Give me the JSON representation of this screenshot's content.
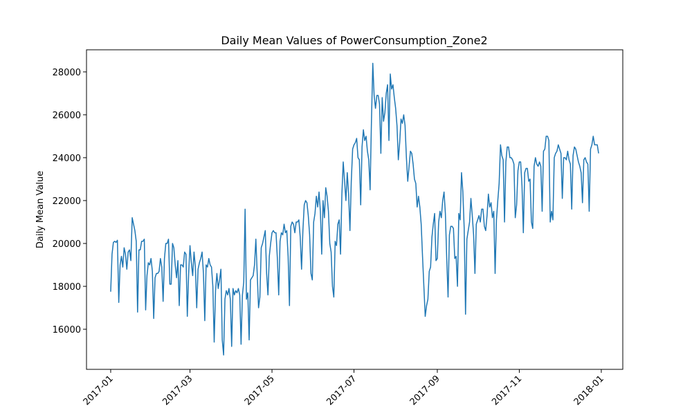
{
  "chart_data": {
    "type": "line",
    "title": "Daily Mean Values of PowerConsumption_Zone2",
    "ylabel": "Daily Mean Value",
    "color": "#1f77b4",
    "xlim": [
      -18,
      381
    ],
    "ylim": [
      14130,
      29030
    ],
    "xticks": [
      {
        "value": 0,
        "label": "2017-01"
      },
      {
        "value": 59,
        "label": "2017-03"
      },
      {
        "value": 120,
        "label": "2017-05"
      },
      {
        "value": 181,
        "label": "2017-07"
      },
      {
        "value": 243,
        "label": "2017-09"
      },
      {
        "value": 304,
        "label": "2017-11"
      },
      {
        "value": 365,
        "label": "2018-01"
      }
    ],
    "yticks": [
      16000,
      18000,
      20000,
      22000,
      24000,
      26000,
      28000
    ],
    "x": [
      0,
      1,
      2,
      3,
      4,
      5,
      6,
      7,
      8,
      9,
      10,
      11,
      12,
      13,
      14,
      15,
      16,
      17,
      18,
      19,
      20,
      21,
      22,
      23,
      24,
      25,
      26,
      27,
      28,
      29,
      30,
      31,
      32,
      33,
      34,
      35,
      36,
      37,
      38,
      39,
      40,
      41,
      42,
      43,
      44,
      45,
      46,
      47,
      48,
      49,
      50,
      51,
      52,
      53,
      54,
      55,
      56,
      57,
      58,
      59,
      60,
      61,
      62,
      63,
      64,
      65,
      66,
      67,
      68,
      69,
      70,
      71,
      72,
      73,
      74,
      75,
      76,
      77,
      78,
      79,
      80,
      81,
      82,
      83,
      84,
      85,
      86,
      87,
      88,
      89,
      90,
      91,
      92,
      93,
      94,
      95,
      96,
      97,
      98,
      99,
      100,
      101,
      102,
      103,
      104,
      105,
      106,
      107,
      108,
      109,
      110,
      111,
      112,
      113,
      114,
      115,
      116,
      117,
      118,
      119,
      120,
      121,
      122,
      123,
      124,
      125,
      126,
      127,
      128,
      129,
      130,
      131,
      132,
      133,
      134,
      135,
      136,
      137,
      138,
      139,
      140,
      141,
      142,
      143,
      144,
      145,
      146,
      147,
      148,
      149,
      150,
      151,
      152,
      153,
      154,
      155,
      156,
      157,
      158,
      159,
      160,
      161,
      162,
      163,
      164,
      165,
      166,
      167,
      168,
      169,
      170,
      171,
      172,
      173,
      174,
      175,
      176,
      177,
      178,
      179,
      180,
      181,
      182,
      183,
      184,
      185,
      186,
      187,
      188,
      189,
      190,
      191,
      192,
      193,
      194,
      195,
      196,
      197,
      198,
      199,
      200,
      201,
      202,
      203,
      204,
      205,
      206,
      207,
      208,
      209,
      210,
      211,
      212,
      213,
      214,
      215,
      216,
      217,
      218,
      219,
      220,
      221,
      222,
      223,
      224,
      225,
      226,
      227,
      228,
      229,
      230,
      231,
      232,
      233,
      234,
      235,
      236,
      237,
      238,
      239,
      240,
      241,
      242,
      243,
      244,
      245,
      246,
      247,
      248,
      249,
      250,
      251,
      252,
      253,
      254,
      255,
      256,
      257,
      258,
      259,
      260,
      261,
      262,
      263,
      264,
      265,
      266,
      267,
      268,
      269,
      270,
      271,
      272,
      273,
      274,
      275,
      276,
      277,
      278,
      279,
      280,
      281,
      282,
      283,
      284,
      285,
      286,
      287,
      288,
      289,
      290,
      291,
      292,
      293,
      294,
      295,
      296,
      297,
      298,
      299,
      300,
      301,
      302,
      303,
      304,
      305,
      306,
      307,
      308,
      309,
      310,
      311,
      312,
      313,
      314,
      315,
      316,
      317,
      318,
      319,
      320,
      321,
      322,
      323,
      324,
      325,
      326,
      327,
      328,
      329,
      330,
      331,
      332,
      333,
      334,
      335,
      336,
      337,
      338,
      339,
      340,
      341,
      342,
      343,
      344,
      345,
      346,
      347,
      348,
      349,
      350,
      351,
      352,
      353,
      354,
      355,
      356,
      357,
      358,
      359,
      360,
      361,
      362,
      363
    ],
    "values": [
      17750,
      19500,
      20050,
      20100,
      20050,
      20150,
      17250,
      19000,
      19400,
      18900,
      19800,
      19500,
      18800,
      19600,
      19700,
      19200,
      21200,
      20900,
      20600,
      20100,
      16800,
      19700,
      19700,
      20100,
      20100,
      20200,
      16900,
      18500,
      19100,
      19000,
      19300,
      18700,
      16500,
      18400,
      18600,
      18600,
      18700,
      19300,
      18900,
      17300,
      19300,
      20000,
      20000,
      20200,
      18100,
      18100,
      20000,
      19800,
      19000,
      18400,
      19200,
      17100,
      19000,
      19000,
      18900,
      19600,
      19500,
      16600,
      18600,
      19900,
      19100,
      18500,
      19600,
      18900,
      17000,
      18800,
      19100,
      19300,
      19600,
      18600,
      16400,
      19000,
      18900,
      19300,
      19000,
      18900,
      18000,
      15400,
      17800,
      18600,
      17900,
      18300,
      18800,
      15500,
      14800,
      17400,
      17800,
      17600,
      17900,
      17400,
      15200,
      17900,
      17600,
      17800,
      17700,
      17900,
      17600,
      15300,
      17600,
      18200,
      21600,
      17400,
      17700,
      15500,
      18300,
      18400,
      18500,
      19000,
      20200,
      18600,
      17000,
      17500,
      19800,
      20000,
      20300,
      20600,
      18600,
      17600,
      19400,
      20000,
      20500,
      20600,
      20500,
      20500,
      19300,
      17600,
      20100,
      20500,
      20400,
      20900,
      20500,
      20600,
      19400,
      17100,
      20800,
      21000,
      20900,
      20500,
      21000,
      21000,
      21100,
      20300,
      18800,
      20600,
      21800,
      22000,
      21900,
      21300,
      20400,
      18600,
      18300,
      21000,
      21400,
      22200,
      21700,
      22400,
      21500,
      19500,
      22000,
      21200,
      22600,
      22200,
      21500,
      20000,
      19600,
      18000,
      17500,
      20100,
      19900,
      20900,
      21100,
      19500,
      22300,
      23800,
      22900,
      22000,
      23300,
      22300,
      20600,
      22900,
      24400,
      24600,
      24700,
      24900,
      24000,
      23900,
      21800,
      24500,
      25300,
      24800,
      25000,
      24300,
      23900,
      22500,
      25700,
      28400,
      26900,
      26300,
      26900,
      26900,
      26500,
      24200,
      26800,
      25700,
      26100,
      27000,
      27400,
      24800,
      27900,
      27200,
      27400,
      26800,
      26300,
      25500,
      23900,
      24700,
      25800,
      25600,
      26000,
      25500,
      24000,
      22900,
      23600,
      24300,
      24200,
      23700,
      23000,
      22800,
      21700,
      22200,
      21700,
      20900,
      19400,
      18000,
      16600,
      17100,
      17400,
      18700,
      18900,
      20300,
      20900,
      21400,
      19200,
      19300,
      21000,
      21500,
      21200,
      22000,
      22400,
      21400,
      19300,
      17500,
      20400,
      20800,
      20800,
      20700,
      19300,
      19400,
      18000,
      21400,
      21100,
      23300,
      22400,
      20700,
      16700,
      20200,
      20600,
      21000,
      22100,
      21300,
      20400,
      18600,
      20900,
      21100,
      21300,
      21000,
      21600,
      21600,
      20800,
      20600,
      21300,
      22300,
      21700,
      21900,
      21200,
      21500,
      18600,
      21100,
      22000,
      22800,
      24600,
      24100,
      23900,
      21000,
      23800,
      24500,
      24500,
      24000,
      24000,
      23900,
      23700,
      21200,
      21800,
      23400,
      23800,
      23800,
      22700,
      20500,
      23300,
      23500,
      23500,
      22900,
      23000,
      21000,
      20700,
      23600,
      24000,
      23700,
      23600,
      23800,
      23600,
      21500,
      24300,
      24400,
      25000,
      25000,
      24800,
      21000,
      21500,
      21100,
      24000,
      24200,
      24300,
      24600,
      24400,
      24200,
      22100,
      24000,
      24000,
      23900,
      24300,
      23900,
      23700,
      21600,
      24100,
      24500,
      24400,
      24100,
      23800,
      23600,
      23300,
      21900,
      23900,
      24000,
      23800,
      23700,
      21500,
      24400,
      24600,
      25000,
      24600,
      24600,
      24600,
      24200
    ]
  }
}
